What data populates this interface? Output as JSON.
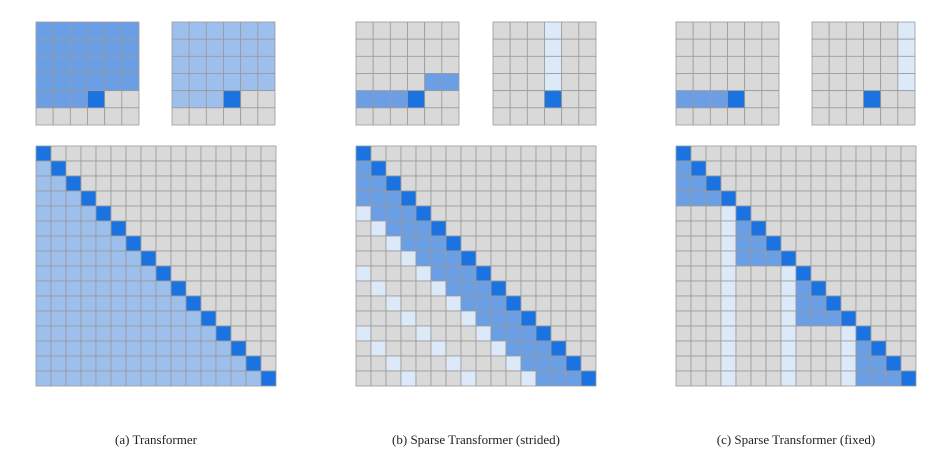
{
  "captions": [
    "(a) Transformer",
    "(b) Sparse Transformer (strided)",
    "(c) Sparse Transformer (fixed)"
  ]
}
